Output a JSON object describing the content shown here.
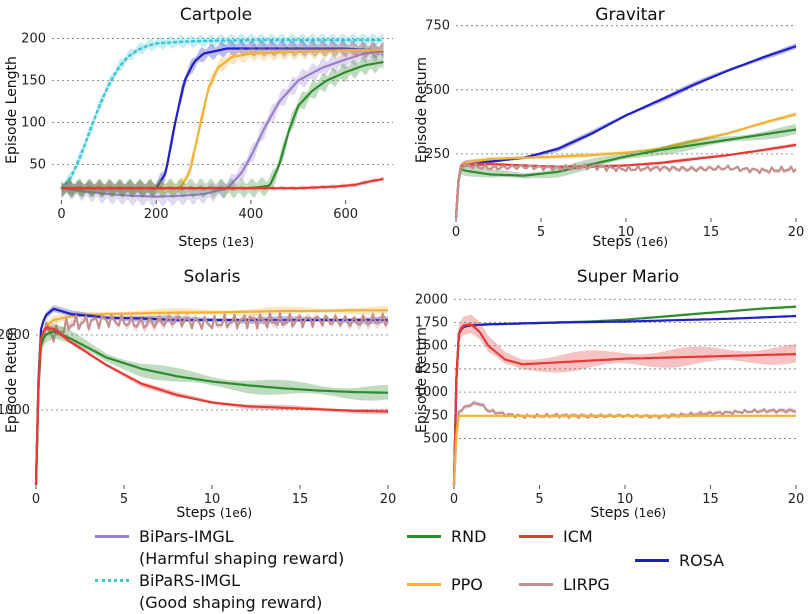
{
  "colors": {
    "bipars_harmful": "#9b7fcf",
    "bipars_good": "#3ec9d6",
    "rnd": "#2e8b2e",
    "icm": "#e53935",
    "ppo": "#f2b134",
    "lirpg": "#c48f8f",
    "rosa": "#1f1fc8"
  },
  "legend": {
    "bipars_harmful": "BiPars-IMGL\n(Harmful shaping reward)",
    "bipars_good": "BiPaRS-IMGL\n(Good shaping reward)",
    "rnd": "RND",
    "ppo": "PPO",
    "icm": "ICM",
    "lirpg": "LIRPG",
    "rosa": "ROSA"
  },
  "chart_data": [
    {
      "type": "line",
      "title": "Cartpole",
      "xlabel": "Steps",
      "xunit": "(1e3)",
      "ylabel": "Episode Length",
      "xlim": [
        -20,
        700
      ],
      "ylim": [
        8,
        210
      ],
      "xticks": [
        0,
        200,
        400,
        600
      ],
      "yticks": [
        50,
        100,
        150,
        200
      ],
      "series": [
        {
          "name": "bipars_good",
          "style": "dotted",
          "x": [
            0,
            20,
            40,
            60,
            80,
            100,
            120,
            140,
            160,
            180,
            200,
            250,
            300,
            400,
            500,
            600,
            680
          ],
          "y": [
            22,
            35,
            60,
            90,
            120,
            145,
            165,
            178,
            186,
            191,
            194,
            196,
            197,
            198,
            198,
            198,
            198
          ],
          "band": 8
        },
        {
          "name": "bipars_harmful",
          "x": [
            0,
            50,
            100,
            150,
            200,
            250,
            300,
            350,
            380,
            400,
            430,
            460,
            500,
            550,
            600,
            640,
            680
          ],
          "y": [
            22,
            18,
            15,
            13,
            12,
            13,
            15,
            22,
            40,
            60,
            95,
            125,
            150,
            165,
            175,
            182,
            185
          ],
          "band": 12
        },
        {
          "name": "rosa",
          "x": [
            0,
            100,
            200,
            220,
            240,
            260,
            280,
            300,
            350,
            400,
            500,
            600,
            660,
            680
          ],
          "y": [
            22,
            22,
            22,
            40,
            100,
            150,
            172,
            182,
            188,
            188,
            188,
            188,
            186,
            185
          ],
          "band": 10
        },
        {
          "name": "ppo",
          "x": [
            0,
            150,
            250,
            270,
            290,
            310,
            330,
            360,
            400,
            500,
            600,
            680
          ],
          "y": [
            22,
            22,
            22,
            40,
            90,
            140,
            165,
            178,
            182,
            184,
            186,
            186
          ],
          "band": 10
        },
        {
          "name": "rnd",
          "x": [
            0,
            200,
            400,
            440,
            460,
            480,
            500,
            530,
            560,
            600,
            640,
            680
          ],
          "y": [
            22,
            22,
            22,
            25,
            50,
            90,
            120,
            138,
            150,
            160,
            168,
            172
          ],
          "band": 12
        },
        {
          "name": "icm",
          "x": [
            0,
            200,
            400,
            500,
            580,
            620,
            650,
            680
          ],
          "y": [
            22,
            22,
            22,
            22,
            24,
            26,
            30,
            33
          ],
          "band": 3
        }
      ]
    },
    {
      "type": "line",
      "title": "Gravitar",
      "xlabel": "Steps",
      "xunit": "(1e6)",
      "ylabel": "Episode Return",
      "xlim": [
        0,
        20
      ],
      "ylim": [
        0,
        780
      ],
      "xticks": [
        0,
        5,
        10,
        15,
        20
      ],
      "yticks": [
        250,
        500,
        750
      ],
      "series": [
        {
          "name": "rosa",
          "x": [
            0,
            0.2,
            0.5,
            2,
            4,
            6,
            8,
            10,
            12,
            14,
            16,
            18,
            20
          ],
          "y": [
            0,
            200,
            215,
            220,
            235,
            270,
            330,
            400,
            460,
            520,
            575,
            625,
            670
          ],
          "band": 12
        },
        {
          "name": "ppo",
          "x": [
            0,
            0.2,
            0.5,
            2,
            4,
            6,
            8,
            10,
            12,
            14,
            16,
            18,
            20
          ],
          "y": [
            0,
            200,
            215,
            230,
            235,
            240,
            245,
            255,
            270,
            300,
            330,
            370,
            405
          ],
          "band": 10
        },
        {
          "name": "rnd",
          "x": [
            0,
            0.2,
            0.5,
            2,
            4,
            6,
            8,
            10,
            12,
            14,
            16,
            18,
            20
          ],
          "y": [
            0,
            195,
            185,
            170,
            165,
            180,
            210,
            240,
            265,
            285,
            305,
            325,
            345
          ],
          "band": 22
        },
        {
          "name": "icm",
          "x": [
            0,
            0.2,
            0.5,
            2,
            4,
            6,
            8,
            10,
            12,
            14,
            16,
            18,
            20
          ],
          "y": [
            0,
            200,
            205,
            210,
            205,
            200,
            200,
            205,
            215,
            230,
            245,
            265,
            285
          ],
          "band": 8
        },
        {
          "name": "lirpg",
          "x": [
            0,
            0.2,
            0.5,
            2,
            4,
            6,
            8,
            10,
            12,
            14,
            16,
            18,
            20
          ],
          "y": [
            0,
            200,
            205,
            195,
            200,
            195,
            200,
            190,
            195,
            190,
            195,
            185,
            190
          ],
          "band": 10,
          "noise": 12
        }
      ]
    },
    {
      "type": "line",
      "title": "Solaris",
      "xlabel": "Steps",
      "xunit": "(1e6)",
      "ylabel": "Episode Return",
      "xlim": [
        0,
        20
      ],
      "ylim": [
        0,
        2600
      ],
      "xticks": [
        0,
        5,
        10,
        15,
        20
      ],
      "yticks": [
        1000,
        2000
      ],
      "series": [
        {
          "name": "ppo",
          "x": [
            0,
            0.2,
            0.5,
            1,
            2,
            4,
            6,
            8,
            10,
            12,
            14,
            16,
            18,
            20
          ],
          "y": [
            0,
            1800,
            2100,
            2200,
            2250,
            2280,
            2290,
            2300,
            2300,
            2310,
            2320,
            2320,
            2330,
            2330
          ],
          "band": 60
        },
        {
          "name": "rosa",
          "x": [
            0,
            0.2,
            0.5,
            1,
            2,
            4,
            6,
            8,
            10,
            12,
            14,
            16,
            18,
            20
          ],
          "y": [
            0,
            2000,
            2250,
            2350,
            2280,
            2230,
            2220,
            2200,
            2200,
            2200,
            2200,
            2200,
            2200,
            2200
          ],
          "band": 50
        },
        {
          "name": "lirpg",
          "x": [
            0,
            0.2,
            0.5,
            1,
            2,
            4,
            6,
            8,
            10,
            12,
            14,
            16,
            18,
            20
          ],
          "y": [
            0,
            1900,
            2100,
            2000,
            2150,
            2200,
            2150,
            2200,
            2150,
            2200,
            2180,
            2200,
            2180,
            2200
          ],
          "band": 70,
          "noise": 110
        },
        {
          "name": "rnd",
          "x": [
            0,
            0.2,
            0.5,
            1,
            2,
            4,
            6,
            8,
            10,
            12,
            14,
            16,
            18,
            20
          ],
          "y": [
            0,
            1800,
            2000,
            2050,
            1950,
            1700,
            1550,
            1450,
            1380,
            1330,
            1290,
            1260,
            1240,
            1230
          ],
          "band": 110
        },
        {
          "name": "icm",
          "x": [
            0,
            0.2,
            0.5,
            1,
            2,
            4,
            6,
            8,
            10,
            12,
            14,
            16,
            18,
            20
          ],
          "y": [
            0,
            1900,
            2100,
            2080,
            1900,
            1600,
            1350,
            1200,
            1100,
            1050,
            1030,
            1010,
            990,
            980
          ],
          "band": 40
        }
      ]
    },
    {
      "type": "line",
      "title": "Super Mario",
      "xlabel": "Steps",
      "xunit": "(1e6)",
      "ylabel": "Episode Return",
      "xlim": [
        0,
        20
      ],
      "ylim": [
        0,
        2100
      ],
      "xticks": [
        0,
        5,
        10,
        15,
        20
      ],
      "yticks": [
        500,
        750,
        1000,
        1250,
        1500,
        1750,
        2000
      ],
      "series": [
        {
          "name": "rnd",
          "x": [
            0,
            0.2,
            0.5,
            1,
            2,
            4,
            6,
            8,
            10,
            12,
            14,
            16,
            18,
            20
          ],
          "y": [
            0,
            1600,
            1700,
            1720,
            1730,
            1740,
            1750,
            1760,
            1780,
            1810,
            1840,
            1870,
            1900,
            1920
          ],
          "band": 15
        },
        {
          "name": "rosa",
          "x": [
            0,
            0.2,
            0.5,
            1,
            2,
            4,
            6,
            8,
            10,
            12,
            14,
            16,
            18,
            20
          ],
          "y": [
            0,
            1600,
            1700,
            1720,
            1730,
            1740,
            1750,
            1755,
            1760,
            1770,
            1780,
            1790,
            1805,
            1820
          ],
          "band": 10
        },
        {
          "name": "icm",
          "x": [
            0,
            0.2,
            0.5,
            1,
            1.5,
            2,
            3,
            4,
            6,
            8,
            10,
            12,
            14,
            16,
            18,
            20
          ],
          "y": [
            0,
            1600,
            1720,
            1730,
            1650,
            1500,
            1350,
            1300,
            1320,
            1340,
            1360,
            1370,
            1380,
            1390,
            1400,
            1410
          ],
          "band": 110
        },
        {
          "name": "lirpg",
          "x": [
            0,
            0.2,
            0.5,
            1,
            1.5,
            2,
            3,
            4,
            6,
            8,
            10,
            12,
            14,
            16,
            18,
            20
          ],
          "y": [
            0,
            780,
            820,
            870,
            880,
            800,
            760,
            740,
            750,
            740,
            745,
            740,
            760,
            780,
            800,
            800
          ],
          "band": 30,
          "noise": 20
        },
        {
          "name": "ppo",
          "x": [
            0,
            0.2,
            0.5,
            1,
            2,
            4,
            6,
            8,
            10,
            12,
            14,
            16,
            18,
            20
          ],
          "y": [
            0,
            740,
            745,
            745,
            745,
            745,
            745,
            745,
            745,
            745,
            745,
            745,
            745,
            745
          ],
          "band": 6
        }
      ]
    }
  ]
}
